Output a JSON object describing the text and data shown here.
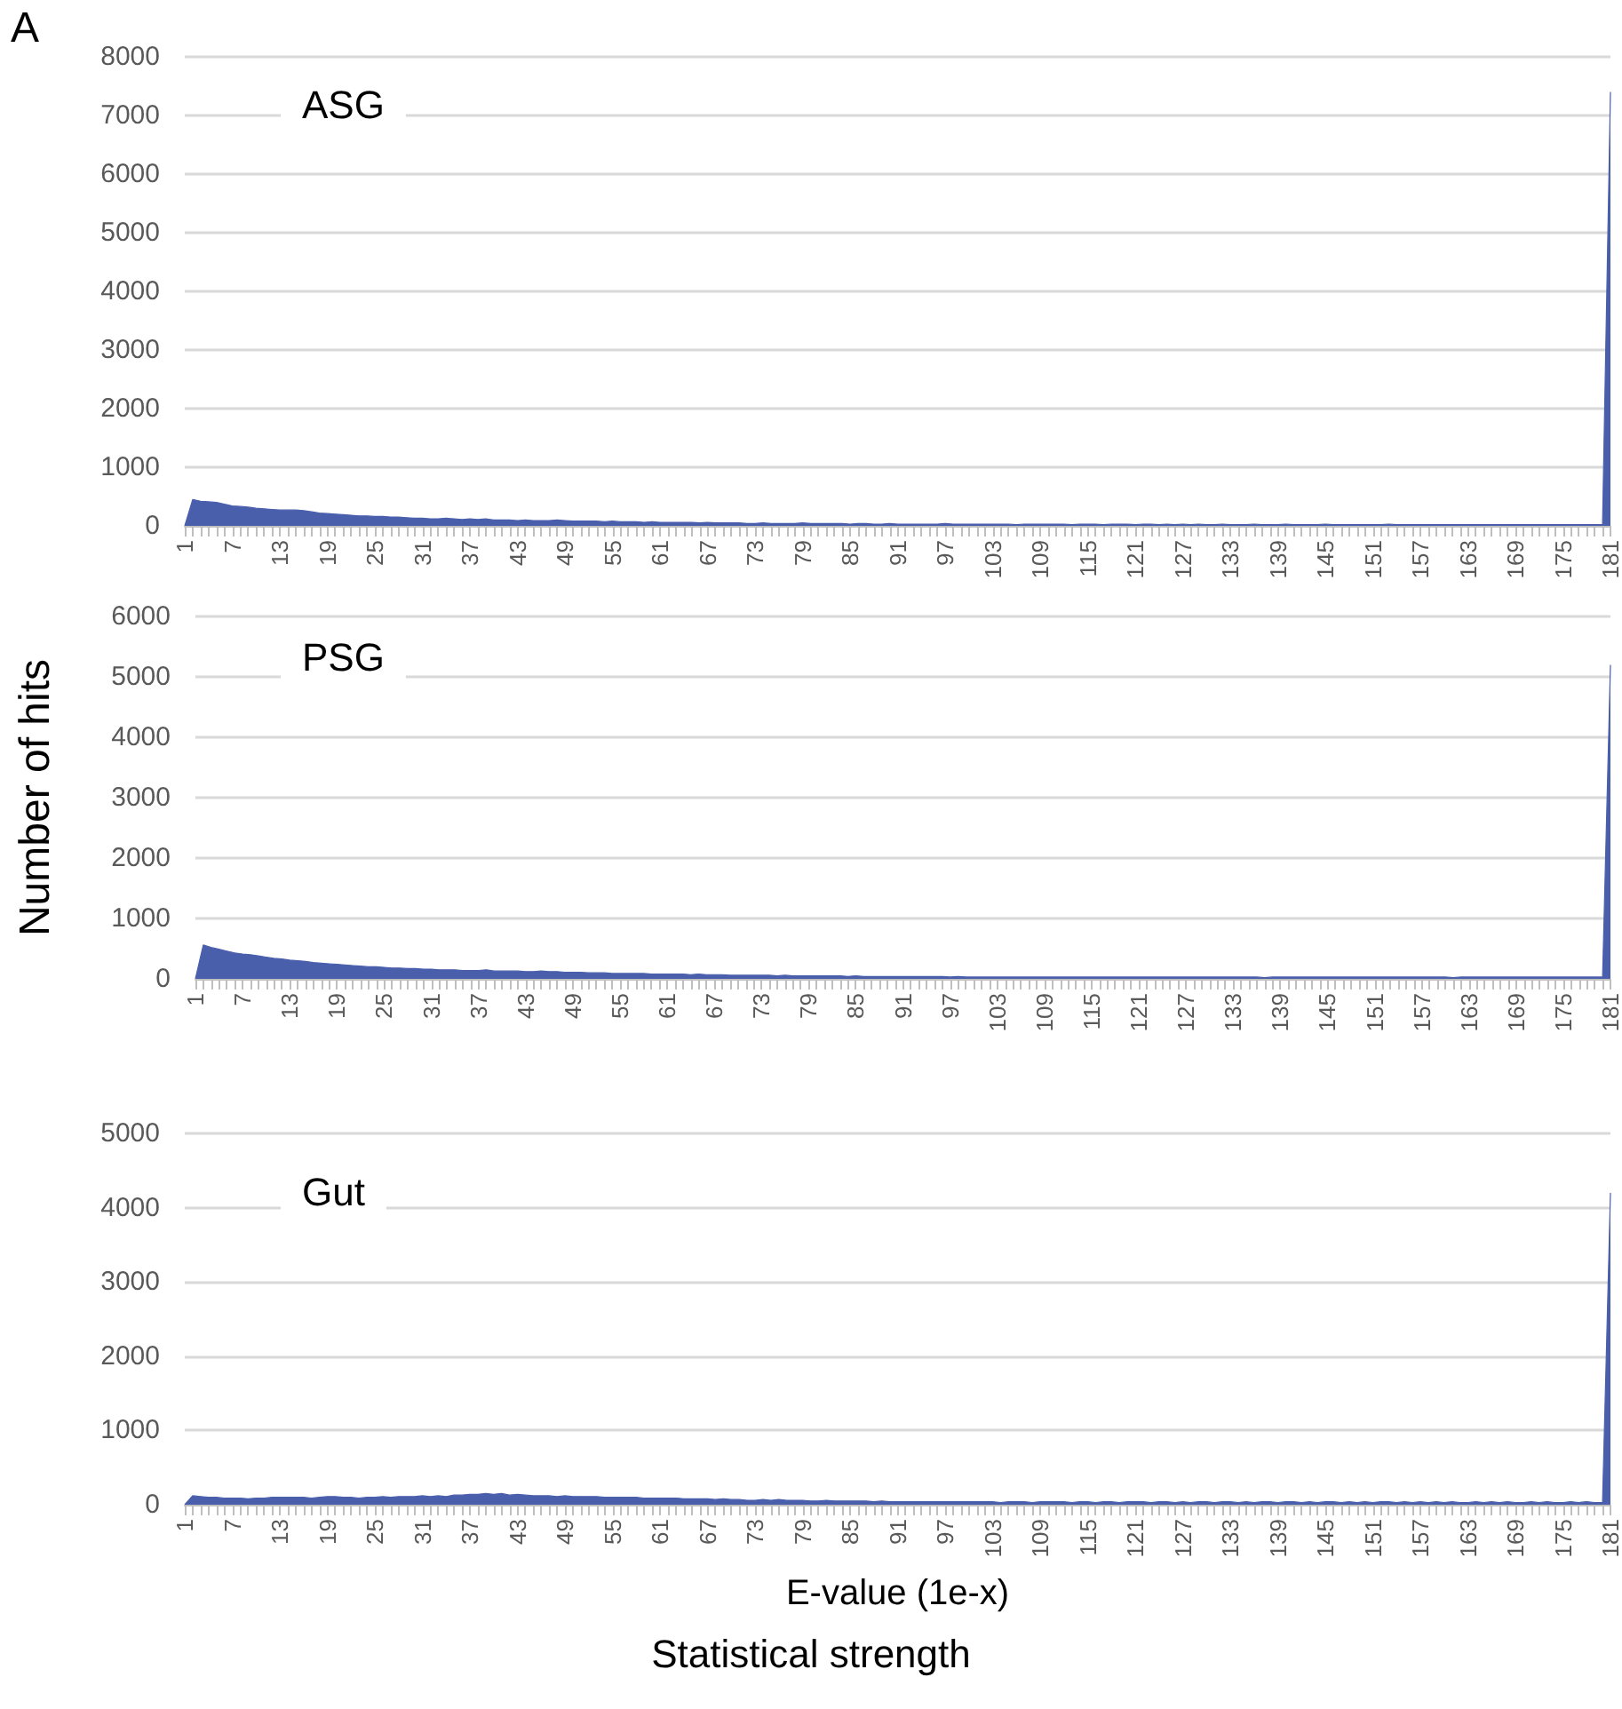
{
  "chart_data": [
    {
      "type": "area",
      "title": "ASG",
      "annotations": [
        "A"
      ],
      "color": "#4a5fac",
      "grid": "y",
      "ylim": [
        0,
        8000
      ],
      "yticks": [
        0,
        1000,
        2000,
        3000,
        4000,
        5000,
        6000,
        7000,
        8000
      ],
      "categories": [
        "1",
        null,
        null,
        null,
        null,
        null,
        "7",
        null,
        null,
        null,
        null,
        null,
        "13",
        null,
        null,
        null,
        null,
        null,
        "19",
        null,
        null,
        null,
        null,
        null,
        "25",
        null,
        null,
        null,
        null,
        null,
        "31",
        null,
        null,
        null,
        null,
        null,
        "37",
        null,
        null,
        null,
        null,
        null,
        "43",
        null,
        null,
        null,
        null,
        null,
        "49",
        null,
        null,
        null,
        null,
        null,
        "55",
        null,
        null,
        null,
        null,
        null,
        "61",
        null,
        null,
        null,
        null,
        null,
        "67",
        null,
        null,
        null,
        null,
        null,
        "73",
        null,
        null,
        null,
        null,
        null,
        "79",
        null,
        null,
        null,
        null,
        null,
        "85",
        null,
        null,
        null,
        null,
        null,
        "91",
        null,
        null,
        null,
        null,
        null,
        "97",
        null,
        null,
        null,
        null,
        null,
        "103",
        null,
        null,
        null,
        null,
        null,
        "109",
        null,
        null,
        null,
        null,
        null,
        "115",
        null,
        null,
        null,
        null,
        null,
        "121",
        null,
        null,
        null,
        null,
        null,
        "127",
        null,
        null,
        null,
        null,
        null,
        "133",
        null,
        null,
        null,
        null,
        null,
        "139",
        null,
        null,
        null,
        null,
        null,
        "145",
        null,
        null,
        null,
        null,
        null,
        "151",
        null,
        null,
        null,
        null,
        null,
        "157",
        null,
        null,
        null,
        null,
        null,
        "163",
        null,
        null,
        null,
        null,
        null,
        "169",
        null,
        null,
        null,
        null,
        null,
        "175",
        null,
        null,
        null,
        null,
        null,
        "181"
      ],
      "values": [
        0,
        450,
        420,
        410,
        400,
        370,
        340,
        330,
        320,
        300,
        290,
        280,
        270,
        270,
        270,
        260,
        240,
        220,
        210,
        200,
        190,
        180,
        170,
        170,
        160,
        160,
        150,
        150,
        140,
        130,
        130,
        120,
        120,
        130,
        120,
        110,
        120,
        110,
        120,
        100,
        100,
        100,
        90,
        100,
        90,
        90,
        90,
        100,
        90,
        80,
        80,
        80,
        80,
        70,
        80,
        70,
        70,
        70,
        60,
        70,
        60,
        60,
        60,
        60,
        60,
        50,
        60,
        50,
        50,
        50,
        50,
        40,
        40,
        50,
        40,
        40,
        40,
        40,
        50,
        40,
        40,
        40,
        40,
        40,
        30,
        40,
        40,
        30,
        30,
        40,
        30,
        30,
        30,
        30,
        30,
        30,
        40,
        30,
        30,
        30,
        30,
        30,
        30,
        30,
        30,
        20,
        30,
        30,
        30,
        30,
        30,
        30,
        20,
        30,
        30,
        30,
        20,
        30,
        30,
        30,
        20,
        30,
        30,
        20,
        30,
        20,
        30,
        20,
        30,
        20,
        20,
        30,
        20,
        20,
        20,
        30,
        20,
        20,
        20,
        30,
        20,
        20,
        20,
        20,
        30,
        20,
        20,
        20,
        20,
        20,
        20,
        20,
        30,
        20,
        20,
        20,
        20,
        20,
        20,
        20,
        20,
        20,
        20,
        20,
        20,
        20,
        20,
        20,
        20,
        20,
        20,
        20,
        20,
        20,
        20,
        20,
        20,
        20,
        20,
        20,
        7400
      ]
    },
    {
      "type": "area",
      "title": "PSG",
      "ylabel": "Number of hits",
      "color": "#4a5fac",
      "grid": "y",
      "ylim": [
        0,
        6000
      ],
      "yticks": [
        0,
        1000,
        2000,
        3000,
        4000,
        5000,
        6000
      ],
      "categories": [
        "1",
        null,
        null,
        null,
        null,
        null,
        "7",
        null,
        null,
        null,
        null,
        null,
        "13",
        null,
        null,
        null,
        null,
        null,
        "19",
        null,
        null,
        null,
        null,
        null,
        "25",
        null,
        null,
        null,
        null,
        null,
        "31",
        null,
        null,
        null,
        null,
        null,
        "37",
        null,
        null,
        null,
        null,
        null,
        "43",
        null,
        null,
        null,
        null,
        null,
        "49",
        null,
        null,
        null,
        null,
        null,
        "55",
        null,
        null,
        null,
        null,
        null,
        "61",
        null,
        null,
        null,
        null,
        null,
        "67",
        null,
        null,
        null,
        null,
        null,
        "73",
        null,
        null,
        null,
        null,
        null,
        "79",
        null,
        null,
        null,
        null,
        null,
        "85",
        null,
        null,
        null,
        null,
        null,
        "91",
        null,
        null,
        null,
        null,
        null,
        "97",
        null,
        null,
        null,
        null,
        null,
        "103",
        null,
        null,
        null,
        null,
        null,
        "109",
        null,
        null,
        null,
        null,
        null,
        "115",
        null,
        null,
        null,
        null,
        null,
        "121",
        null,
        null,
        null,
        null,
        null,
        "127",
        null,
        null,
        null,
        null,
        null,
        "133",
        null,
        null,
        null,
        null,
        null,
        "139",
        null,
        null,
        null,
        null,
        null,
        "145",
        null,
        null,
        null,
        null,
        null,
        "151",
        null,
        null,
        null,
        null,
        null,
        "157",
        null,
        null,
        null,
        null,
        null,
        "163",
        null,
        null,
        null,
        null,
        null,
        "169",
        null,
        null,
        null,
        null,
        null,
        "175",
        null,
        null,
        null,
        null,
        null,
        "181"
      ],
      "values": [
        0,
        560,
        520,
        490,
        460,
        430,
        410,
        400,
        380,
        360,
        340,
        330,
        310,
        300,
        290,
        270,
        260,
        250,
        240,
        230,
        220,
        210,
        200,
        200,
        190,
        180,
        180,
        170,
        170,
        160,
        160,
        150,
        150,
        150,
        140,
        140,
        140,
        150,
        130,
        130,
        130,
        130,
        120,
        120,
        130,
        120,
        120,
        110,
        110,
        110,
        100,
        100,
        100,
        90,
        90,
        90,
        90,
        90,
        80,
        80,
        80,
        80,
        80,
        70,
        80,
        70,
        70,
        70,
        60,
        60,
        60,
        60,
        60,
        60,
        50,
        60,
        50,
        50,
        50,
        50,
        50,
        50,
        50,
        40,
        50,
        40,
        40,
        40,
        40,
        40,
        40,
        40,
        40,
        40,
        40,
        40,
        30,
        40,
        30,
        30,
        30,
        30,
        30,
        30,
        30,
        30,
        30,
        30,
        30,
        30,
        30,
        30,
        30,
        30,
        30,
        30,
        30,
        30,
        30,
        30,
        30,
        30,
        30,
        30,
        30,
        30,
        30,
        30,
        30,
        30,
        30,
        30,
        30,
        30,
        30,
        30,
        20,
        30,
        30,
        30,
        30,
        30,
        30,
        30,
        30,
        30,
        30,
        30,
        30,
        30,
        30,
        30,
        30,
        30,
        30,
        30,
        30,
        30,
        30,
        30,
        20,
        30,
        30,
        30,
        30,
        30,
        30,
        30,
        30,
        30,
        30,
        30,
        30,
        30,
        30,
        30,
        30,
        30,
        30,
        30,
        5200
      ]
    },
    {
      "type": "area",
      "title": "Gut",
      "xlabel": "E-value (1e-x)",
      "annotations": [
        "Statistical strength"
      ],
      "color": "#4a5fac",
      "grid": "y",
      "ylim": [
        0,
        5000
      ],
      "yticks": [
        0,
        1000,
        2000,
        3000,
        4000,
        5000
      ],
      "categories": [
        "1",
        null,
        null,
        null,
        null,
        null,
        "7",
        null,
        null,
        null,
        null,
        null,
        "13",
        null,
        null,
        null,
        null,
        null,
        "19",
        null,
        null,
        null,
        null,
        null,
        "25",
        null,
        null,
        null,
        null,
        null,
        "31",
        null,
        null,
        null,
        null,
        null,
        "37",
        null,
        null,
        null,
        null,
        null,
        "43",
        null,
        null,
        null,
        null,
        null,
        "49",
        null,
        null,
        null,
        null,
        null,
        "55",
        null,
        null,
        null,
        null,
        null,
        "61",
        null,
        null,
        null,
        null,
        null,
        "67",
        null,
        null,
        null,
        null,
        null,
        "73",
        null,
        null,
        null,
        null,
        null,
        "79",
        null,
        null,
        null,
        null,
        null,
        "85",
        null,
        null,
        null,
        null,
        null,
        "91",
        null,
        null,
        null,
        null,
        null,
        "97",
        null,
        null,
        null,
        null,
        null,
        "103",
        null,
        null,
        null,
        null,
        null,
        "109",
        null,
        null,
        null,
        null,
        null,
        "115",
        null,
        null,
        null,
        null,
        null,
        "121",
        null,
        null,
        null,
        null,
        null,
        "127",
        null,
        null,
        null,
        null,
        null,
        "133",
        null,
        null,
        null,
        null,
        null,
        "139",
        null,
        null,
        null,
        null,
        null,
        "145",
        null,
        null,
        null,
        null,
        null,
        "151",
        null,
        null,
        null,
        null,
        null,
        "157",
        null,
        null,
        null,
        null,
        null,
        "163",
        null,
        null,
        null,
        null,
        null,
        "169",
        null,
        null,
        null,
        null,
        null,
        "175",
        null,
        null,
        null,
        null,
        null,
        "181"
      ],
      "values": [
        0,
        120,
        110,
        100,
        100,
        90,
        90,
        90,
        80,
        90,
        90,
        100,
        100,
        100,
        100,
        100,
        90,
        100,
        110,
        110,
        100,
        100,
        90,
        100,
        100,
        110,
        100,
        110,
        110,
        110,
        120,
        110,
        120,
        110,
        130,
        130,
        140,
        140,
        150,
        140,
        150,
        130,
        140,
        130,
        120,
        120,
        120,
        110,
        120,
        110,
        110,
        110,
        110,
        100,
        100,
        100,
        100,
        100,
        90,
        90,
        90,
        90,
        90,
        80,
        80,
        80,
        80,
        70,
        80,
        70,
        70,
        60,
        60,
        70,
        60,
        70,
        60,
        60,
        60,
        50,
        50,
        60,
        50,
        50,
        50,
        50,
        50,
        40,
        50,
        40,
        40,
        40,
        40,
        40,
        40,
        40,
        40,
        40,
        40,
        40,
        40,
        40,
        40,
        30,
        40,
        40,
        40,
        30,
        40,
        40,
        40,
        40,
        30,
        40,
        40,
        30,
        40,
        40,
        30,
        40,
        40,
        40,
        30,
        40,
        40,
        30,
        40,
        30,
        40,
        40,
        30,
        40,
        40,
        30,
        40,
        30,
        40,
        40,
        30,
        40,
        40,
        30,
        40,
        30,
        40,
        40,
        30,
        40,
        30,
        40,
        30,
        40,
        40,
        30,
        40,
        30,
        40,
        30,
        40,
        30,
        40,
        30,
        30,
        40,
        30,
        40,
        30,
        40,
        30,
        30,
        40,
        30,
        40,
        30,
        30,
        40,
        30,
        40,
        30,
        30,
        4200
      ]
    }
  ]
}
